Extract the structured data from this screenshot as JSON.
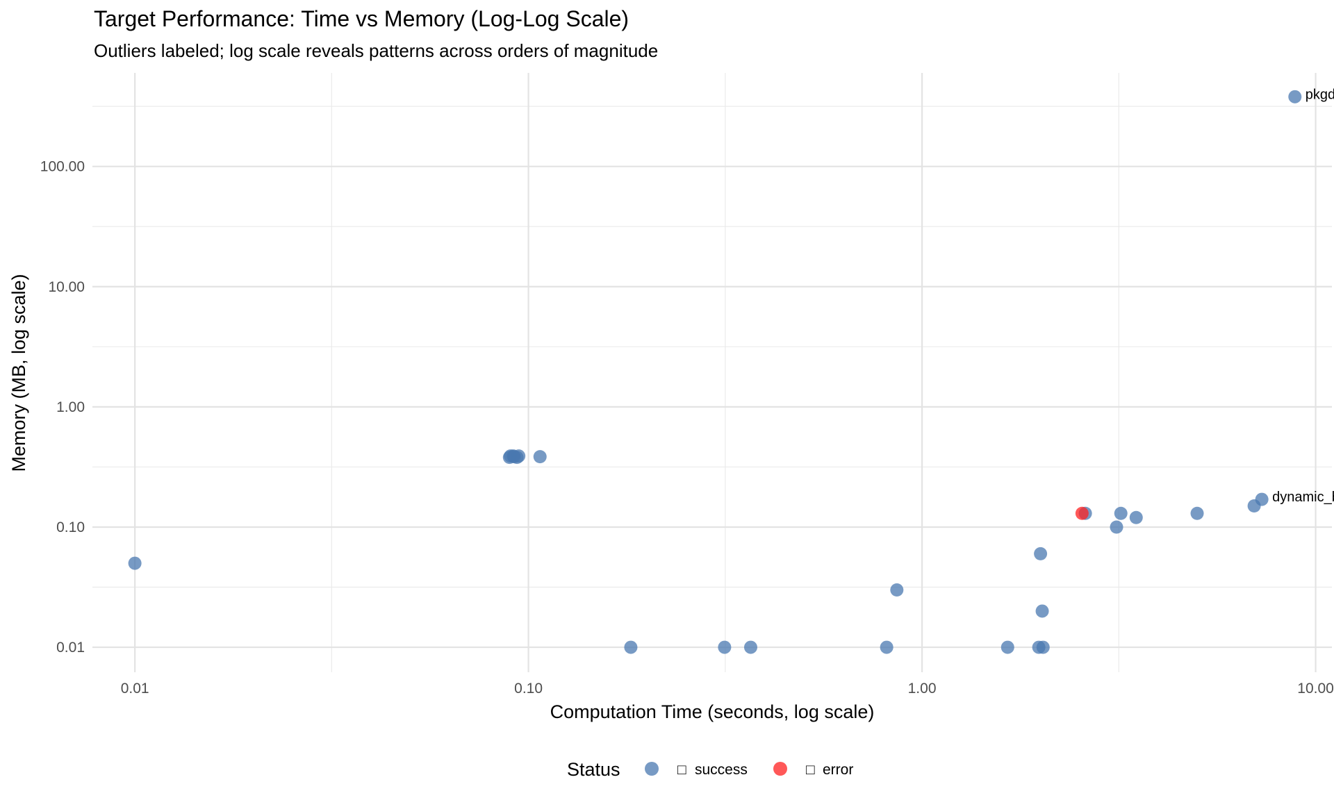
{
  "chart_data": {
    "type": "scatter",
    "title": "Target Performance: Time vs Memory (Log-Log Scale)",
    "subtitle": "Outliers labeled; log scale reveals patterns across orders of magnitude",
    "xlabel": "Computation Time (seconds, log scale)",
    "ylabel": "Memory (MB, log scale)",
    "x_scale": "log10",
    "y_scale": "log10",
    "xlim": [
      0.0078,
      11.0
    ],
    "ylim": [
      0.0062,
      600
    ],
    "x_ticks": [
      0.01,
      0.1,
      1,
      10
    ],
    "x_tick_labels": [
      "0.01",
      "0.10",
      "1.00",
      "10.00"
    ],
    "y_ticks": [
      0.01,
      0.1,
      1,
      10,
      100
    ],
    "y_tick_labels": [
      "0.01",
      "0.10",
      "1.00",
      "10.00",
      "100.00"
    ],
    "grid": true,
    "legend": {
      "title": "Status",
      "position": "bottom",
      "entries": [
        {
          "name": "success",
          "symbol": "□",
          "color": "#4a78b0"
        },
        {
          "name": "error",
          "symbol": "□",
          "color": "#ff2020"
        }
      ]
    },
    "series": [
      {
        "name": "success",
        "color": "#4a78b0",
        "points": [
          {
            "x": 0.01,
            "y": 0.05
          },
          {
            "x": 0.0895,
            "y": 0.38
          },
          {
            "x": 0.09,
            "y": 0.39
          },
          {
            "x": 0.0915,
            "y": 0.39
          },
          {
            "x": 0.092,
            "y": 0.385
          },
          {
            "x": 0.0935,
            "y": 0.38
          },
          {
            "x": 0.0945,
            "y": 0.39
          },
          {
            "x": 0.107,
            "y": 0.385
          },
          {
            "x": 0.182,
            "y": 0.01
          },
          {
            "x": 0.315,
            "y": 0.01
          },
          {
            "x": 0.367,
            "y": 0.01
          },
          {
            "x": 0.813,
            "y": 0.01
          },
          {
            "x": 0.863,
            "y": 0.03
          },
          {
            "x": 1.65,
            "y": 0.01
          },
          {
            "x": 1.98,
            "y": 0.01
          },
          {
            "x": 2.03,
            "y": 0.01
          },
          {
            "x": 2.0,
            "y": 0.06
          },
          {
            "x": 2.02,
            "y": 0.02
          },
          {
            "x": 2.6,
            "y": 0.13
          },
          {
            "x": 3.12,
            "y": 0.1
          },
          {
            "x": 3.2,
            "y": 0.13
          },
          {
            "x": 3.5,
            "y": 0.12
          },
          {
            "x": 5.0,
            "y": 0.13
          },
          {
            "x": 6.98,
            "y": 0.15
          },
          {
            "x": 7.3,
            "y": 0.17,
            "label": "dynamic_br"
          },
          {
            "x": 8.86,
            "y": 380,
            "label": "pkgdov"
          }
        ]
      },
      {
        "name": "error",
        "color": "#ff2020",
        "points": [
          {
            "x": 2.55,
            "y": 0.13
          }
        ]
      }
    ]
  }
}
